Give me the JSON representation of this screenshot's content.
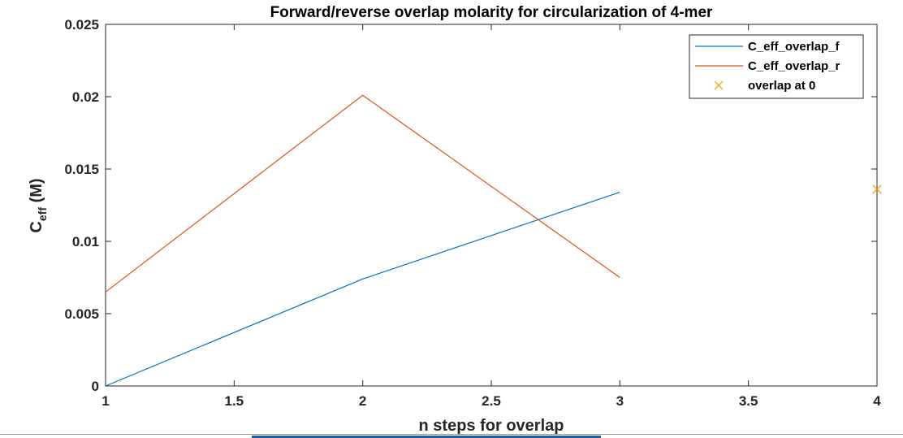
{
  "chart_data": {
    "type": "line",
    "title": "Forward/reverse overlap molarity for circularization of 4-mer",
    "xlabel": "n steps for overlap",
    "ylabel_main": "C",
    "ylabel_sub": "eff",
    "ylabel_unit": " (M)",
    "xlim": [
      1,
      4
    ],
    "ylim": [
      0,
      0.025
    ],
    "x_ticks": [
      1,
      1.5,
      2,
      2.5,
      3,
      3.5,
      4
    ],
    "x_tick_labels": [
      "1",
      "1.5",
      "2",
      "2.5",
      "3",
      "3.5",
      "4"
    ],
    "y_ticks": [
      0,
      0.005,
      0.01,
      0.015,
      0.02,
      0.025
    ],
    "y_tick_labels": [
      "0",
      "0.005",
      "0.01",
      "0.015",
      "0.02",
      "0.025"
    ],
    "legend_position": "top-right",
    "series": [
      {
        "name": "C_eff_overlap_f",
        "kind": "line",
        "color": "#0072bd",
        "x": [
          1,
          2,
          3
        ],
        "y": [
          0.0,
          0.0074,
          0.0134
        ]
      },
      {
        "name": "C_eff_overlap_r",
        "kind": "line",
        "color": "#d95319",
        "x": [
          1,
          2,
          3
        ],
        "y": [
          0.0065,
          0.0201,
          0.0075
        ]
      },
      {
        "name": "overlap at 0",
        "kind": "marker",
        "marker": "x",
        "color": "#edb120",
        "x": [
          4
        ],
        "y": [
          0.0136
        ]
      }
    ]
  }
}
